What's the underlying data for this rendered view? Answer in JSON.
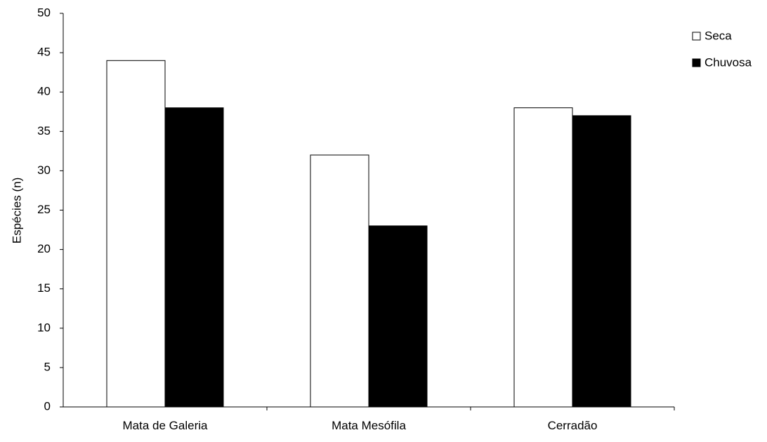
{
  "chart_data": {
    "type": "bar",
    "title": "",
    "xlabel": "",
    "ylabel": "Espécies (n)",
    "ylim": [
      0,
      50
    ],
    "yticks": [
      0,
      5,
      10,
      15,
      20,
      25,
      30,
      35,
      40,
      45,
      50
    ],
    "categories": [
      "Mata de Galeria",
      "Mata Mesófila",
      "Cerradão"
    ],
    "series": [
      {
        "name": "Seca",
        "values": [
          44,
          32,
          38
        ],
        "color": "#ffffff"
      },
      {
        "name": "Chuvosa",
        "values": [
          38,
          23,
          37
        ],
        "color": "#000000"
      }
    ],
    "legend_position": "top-right",
    "grid": false
  }
}
